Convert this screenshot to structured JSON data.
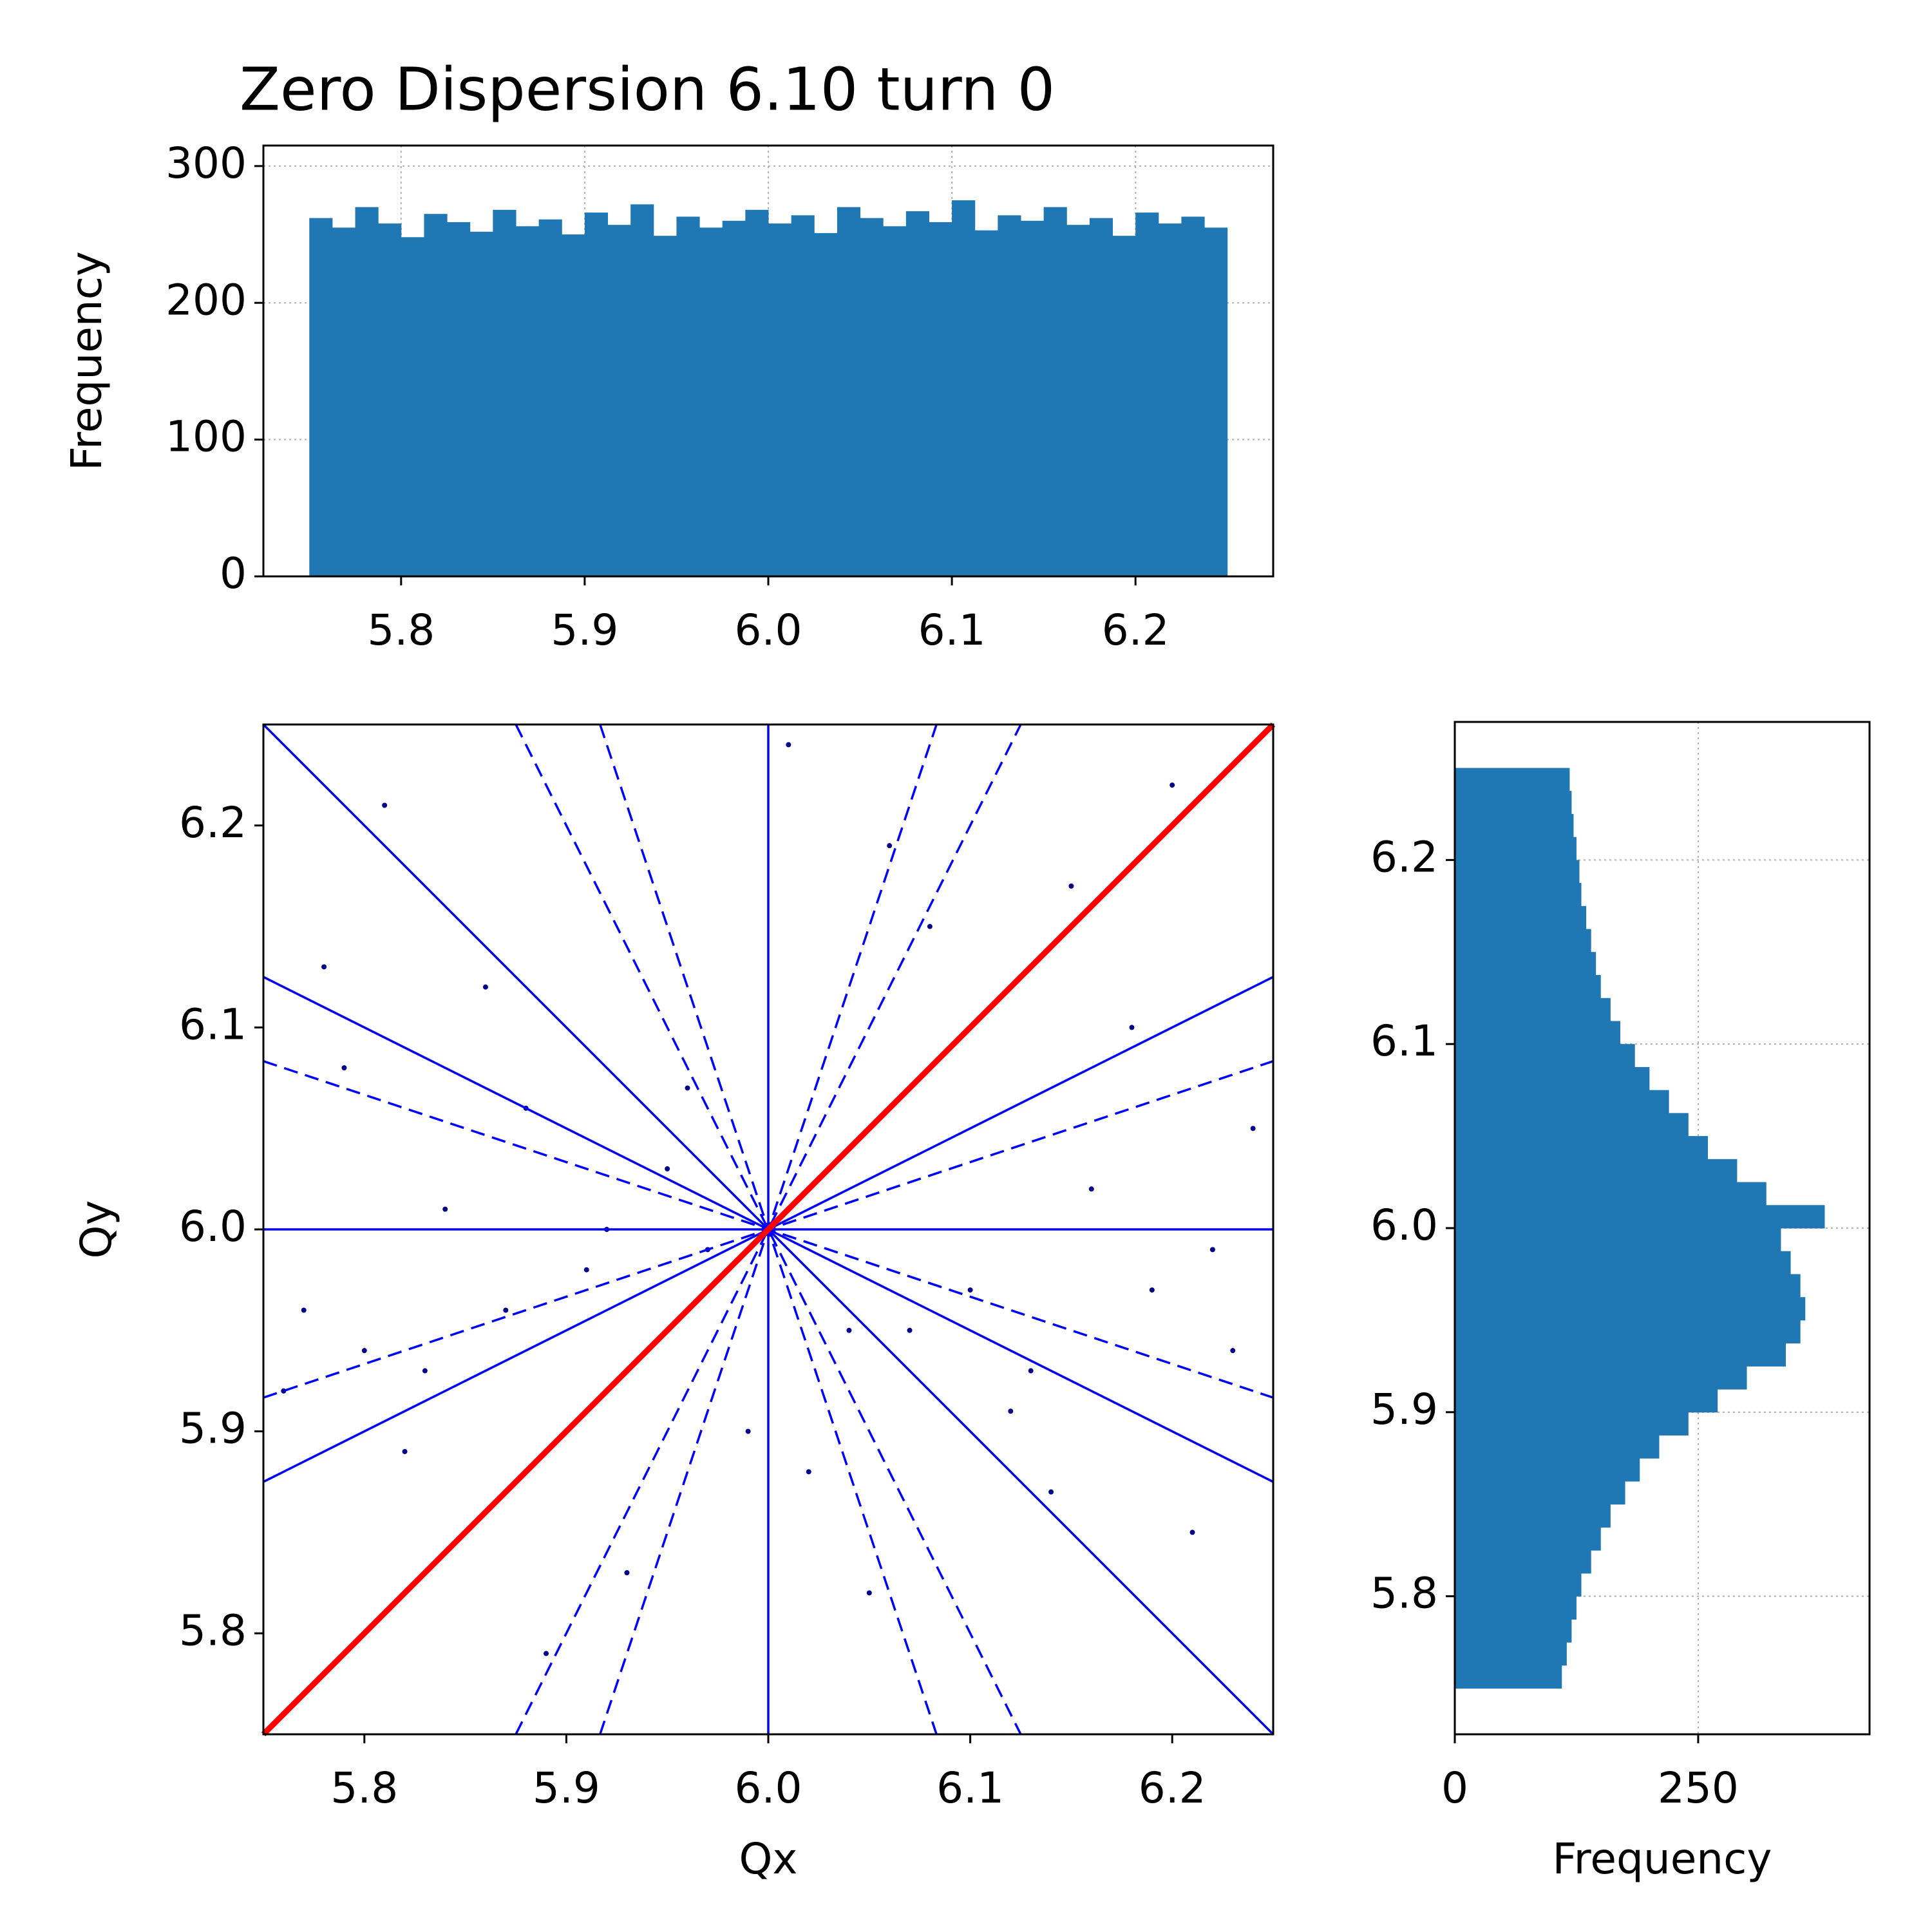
{
  "chart_data": [
    {
      "type": "histogram",
      "orientation": "vertical",
      "title": "Zero Dispersion 6.10 turn 0",
      "y_label": "Frequency",
      "bins": [
        5.75,
        5.7625,
        5.775,
        5.7875,
        5.8,
        5.8125,
        5.825,
        5.8375,
        5.85,
        5.8625,
        5.875,
        5.8875,
        5.9,
        5.9125,
        5.925,
        5.9375,
        5.95,
        5.9625,
        5.975,
        5.9875,
        6.0,
        6.0125,
        6.025,
        6.0375,
        6.05,
        6.0625,
        6.075,
        6.0875,
        6.1,
        6.1125,
        6.125,
        6.1375,
        6.15,
        6.1625,
        6.175,
        6.1875,
        6.2,
        6.2125,
        6.225,
        6.2375,
        6.25
      ],
      "values": [
        262,
        255,
        270,
        258,
        248,
        265,
        259,
        252,
        268,
        256,
        261,
        250,
        266,
        257,
        272,
        249,
        263,
        255,
        260,
        268,
        258,
        264,
        251,
        270,
        262,
        256,
        267,
        259,
        275,
        253,
        264,
        260,
        270,
        257,
        262,
        249,
        266,
        258,
        263,
        255
      ],
      "color": "#1f77b4",
      "xlim": [
        5.725,
        6.275
      ],
      "ylim": [
        0,
        315
      ],
      "xticks": [
        5.8,
        5.9,
        {
          "value": 6,
          "label": "6.0"
        },
        6.1,
        6.2
      ],
      "yticks": [
        0,
        100,
        200,
        300
      ],
      "grid": true
    },
    {
      "type": "scatter",
      "x_label": "Qx",
      "y_label": "Qy",
      "color": "#00008b",
      "x": [
        5.77,
        5.83,
        5.91,
        6.04,
        6.12,
        6.19,
        6.23,
        5.79,
        5.86,
        5.95,
        6.02,
        6.08,
        6.16,
        6.21,
        5.81,
        5.89,
        5.97,
        6.06,
        6.14,
        6.24,
        5.76,
        5.84,
        5.93,
        6.01,
        6.1,
        6.18,
        5.8,
        5.88,
        5.99,
        6.07,
        6.15,
        6.22,
        5.78,
        5.87,
        5.96,
        6.05,
        6.13,
        6.2,
        5.82,
        5.92
      ],
      "values": [
        5.96,
        5.93,
        5.98,
        5.95,
        5.91,
        5.97,
        5.94,
        6.08,
        6.12,
        6.03,
        5.88,
        6.15,
        6.02,
        5.85,
        6.21,
        5.79,
        5.99,
        6.19,
        5.87,
        6.05,
        5.92,
        6.01,
        5.83,
        6.24,
        5.97,
        6.1,
        5.94,
        6.06,
        5.9,
        5.95,
        6.17,
        5.99,
        6.13,
        5.96,
        6.07,
        5.82,
        5.93,
        6.22,
        5.89,
        6.0
      ],
      "lines": [
        {
          "color": "#0000ff",
          "dashed": false,
          "x": [
            6,
            6
          ],
          "values": [
            5.75,
            6.25
          ]
        },
        {
          "color": "#0000ff",
          "dashed": false,
          "x": [
            5.75,
            6.25
          ],
          "values": [
            6,
            6
          ]
        },
        {
          "color": "#0000ff",
          "dashed": false,
          "x": [
            5.75,
            6.25
          ],
          "values": [
            6.25,
            5.75
          ]
        },
        {
          "color": "#0000ff",
          "dashed": false,
          "x": [
            5.75,
            6.25
          ],
          "values": [
            5.875,
            6.125
          ]
        },
        {
          "color": "#0000ff",
          "dashed": false,
          "x": [
            5.75,
            6.25
          ],
          "values": [
            6.125,
            5.875
          ]
        },
        {
          "color": "#0000ff",
          "dashed": true,
          "x": [
            5.75,
            6.25
          ],
          "values": [
            5.9167,
            6.0833
          ]
        },
        {
          "color": "#0000ff",
          "dashed": true,
          "x": [
            5.75,
            6.25
          ],
          "values": [
            6.0833,
            5.9167
          ]
        },
        {
          "color": "#0000ff",
          "dashed": true,
          "x": [
            5.875,
            6.125
          ],
          "values": [
            5.75,
            6.25
          ]
        },
        {
          "color": "#0000ff",
          "dashed": true,
          "x": [
            5.875,
            6.125
          ],
          "values": [
            6.25,
            5.75
          ]
        },
        {
          "color": "#0000ff",
          "dashed": true,
          "x": [
            5.9167,
            6.0833
          ],
          "values": [
            5.75,
            6.25
          ]
        },
        {
          "color": "#0000ff",
          "dashed": true,
          "x": [
            5.9167,
            6.0833
          ],
          "values": [
            6.25,
            5.75
          ]
        },
        {
          "color": "#ff0000",
          "dashed": false,
          "thick": true,
          "x": [
            5.75,
            6.25
          ],
          "values": [
            5.75,
            6.25
          ]
        }
      ],
      "xlim": [
        5.75,
        6.25
      ],
      "ylim": [
        5.75,
        6.25
      ],
      "xticks": [
        5.8,
        5.9,
        {
          "value": 6,
          "label": "6.0"
        },
        6.1,
        6.2
      ],
      "yticks": [
        5.8,
        5.9,
        {
          "value": 6,
          "label": "6.0"
        },
        6.1,
        6.2
      ],
      "grid": false
    },
    {
      "type": "histogram",
      "orientation": "horizontal",
      "x_label": "Frequency",
      "bins": [
        5.75,
        5.7625,
        5.775,
        5.7875,
        5.8,
        5.8125,
        5.825,
        5.8375,
        5.85,
        5.8625,
        5.875,
        5.8875,
        5.9,
        5.9125,
        5.925,
        5.9375,
        5.95,
        5.9625,
        5.975,
        5.9875,
        6.0,
        6.0125,
        6.025,
        6.0375,
        6.05,
        6.0625,
        6.075,
        6.0875,
        6.1,
        6.1125,
        6.125,
        6.1375,
        6.15,
        6.1625,
        6.175,
        6.1875,
        6.2,
        6.2125,
        6.225,
        6.2375,
        6.25
      ],
      "values": [
        110,
        115,
        120,
        125,
        130,
        140,
        150,
        160,
        175,
        190,
        210,
        240,
        270,
        300,
        340,
        355,
        360,
        355,
        345,
        335,
        380,
        320,
        290,
        260,
        240,
        220,
        200,
        185,
        170,
        160,
        150,
        145,
        140,
        135,
        130,
        128,
        125,
        122,
        120,
        118
      ],
      "color": "#1f77b4",
      "xlim": [
        0,
        426
      ],
      "ylim": [
        5.725,
        6.275
      ],
      "xticks": [
        0,
        250
      ],
      "yticks": [
        5.8,
        5.9,
        {
          "value": 6,
          "label": "6.0"
        },
        6.1,
        6.2
      ],
      "grid": true
    }
  ]
}
